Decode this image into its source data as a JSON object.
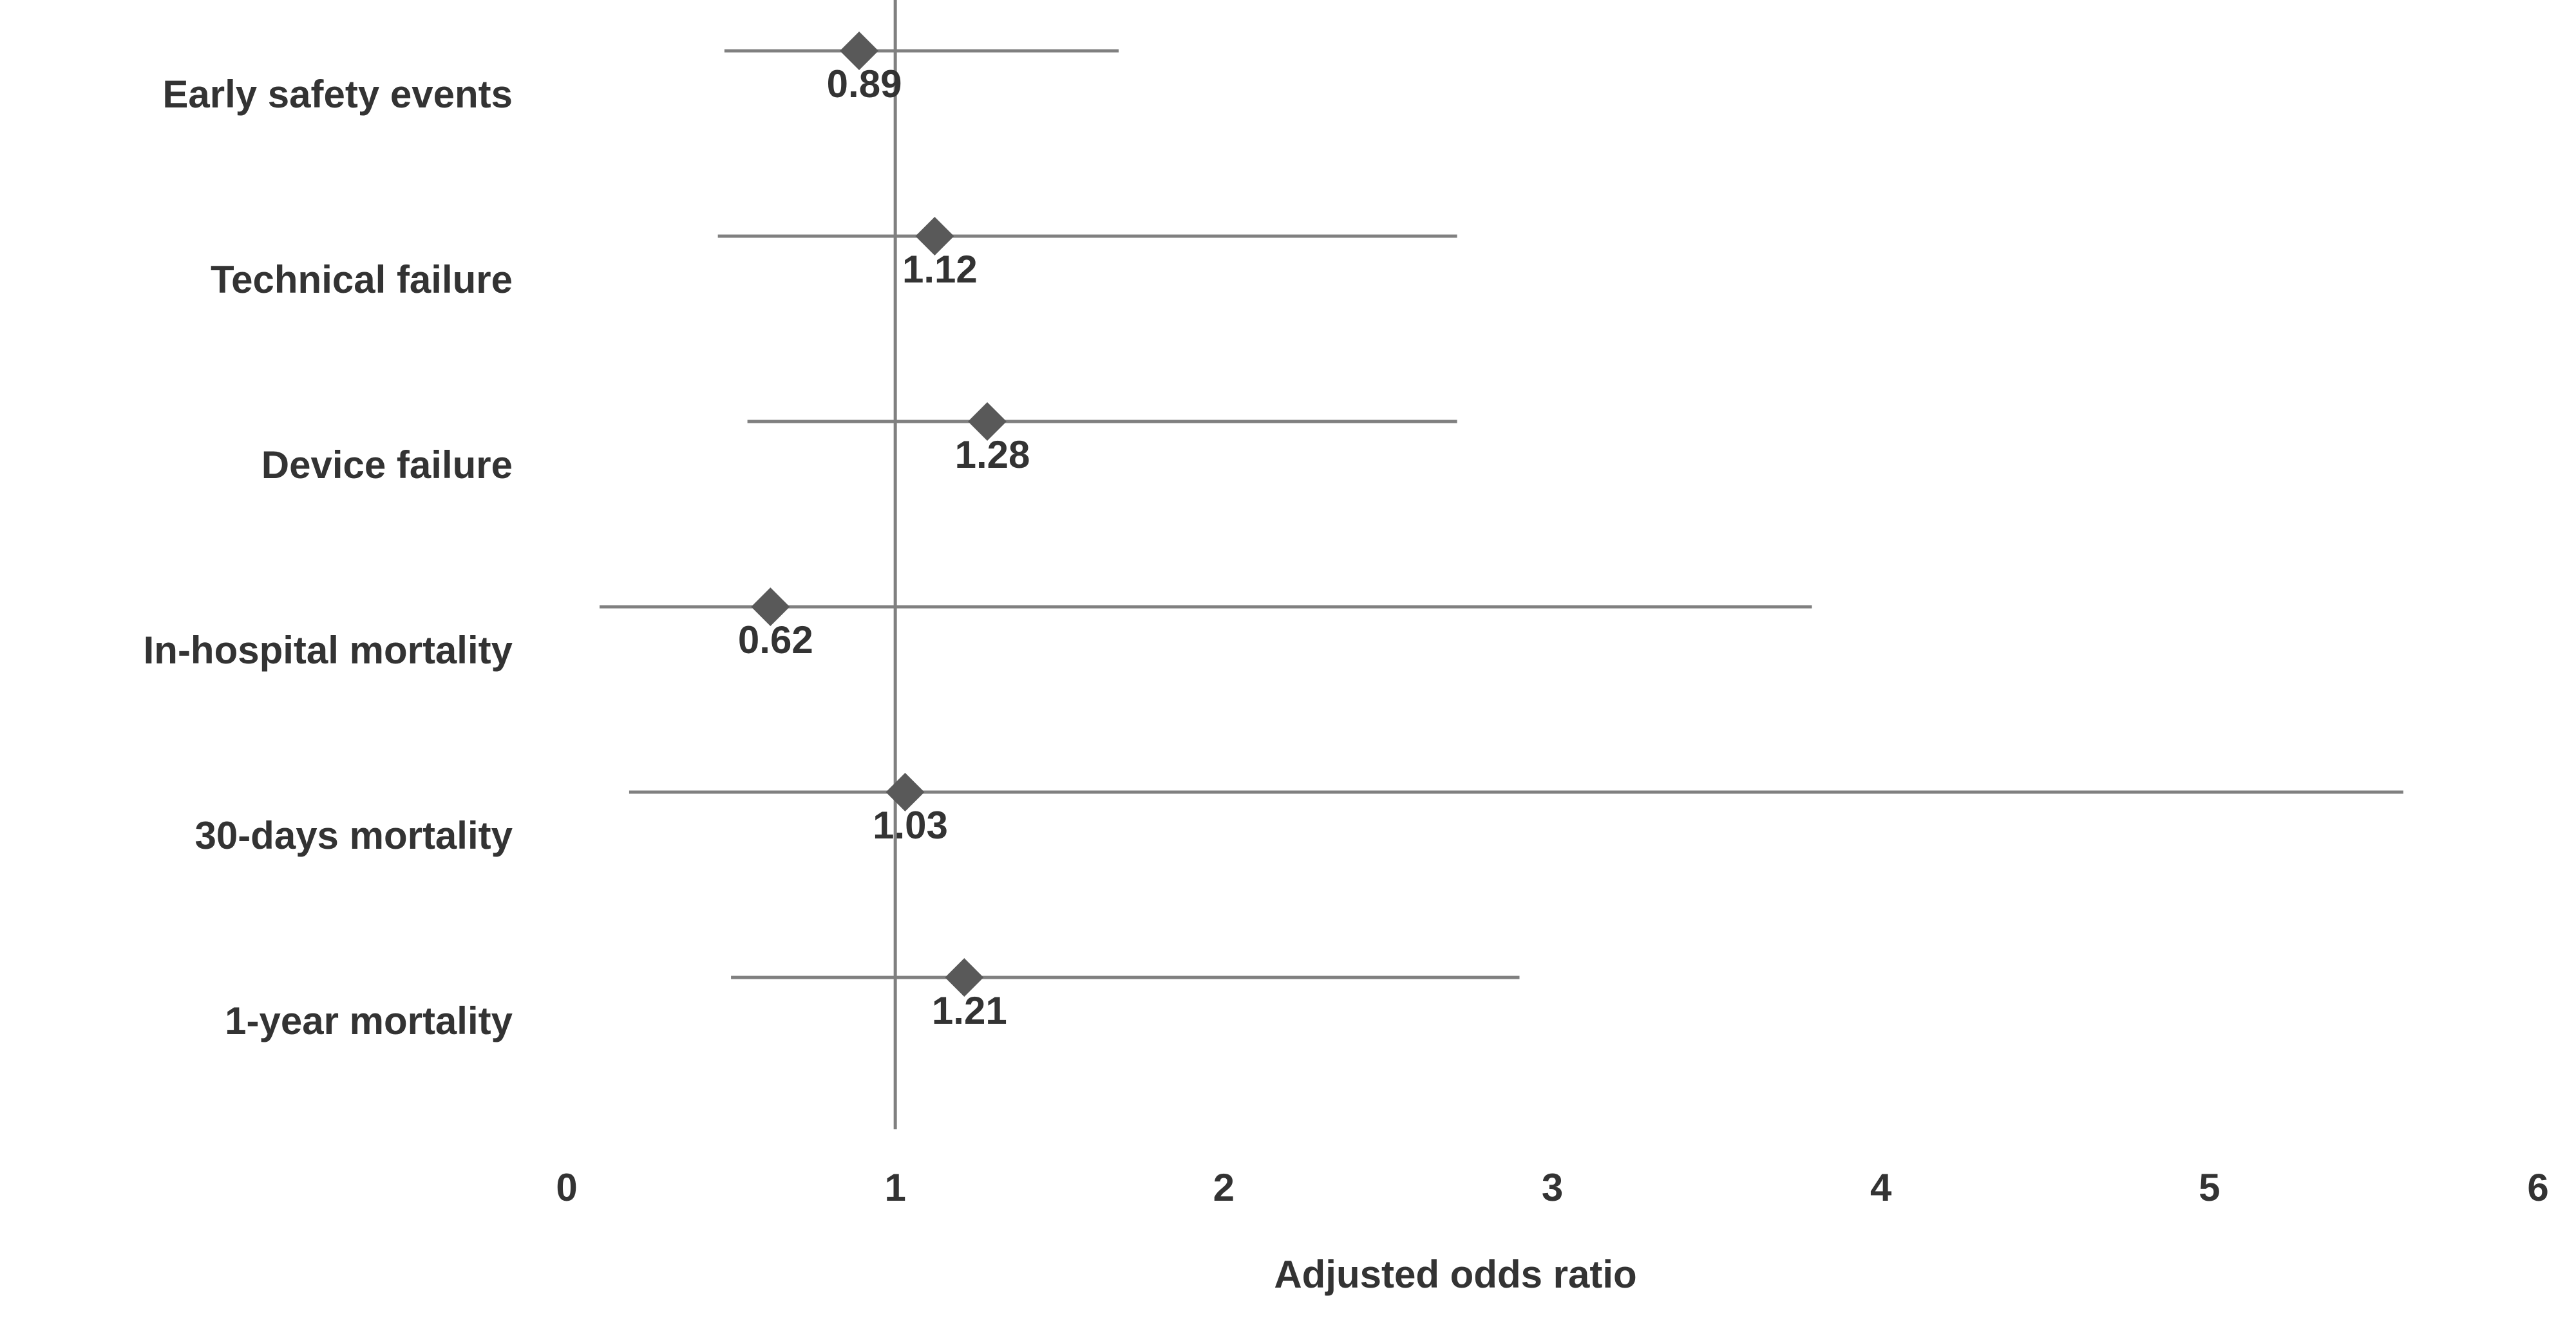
{
  "chart_data": {
    "type": "forest",
    "categories": [
      "Early safety events",
      "Technical failure",
      "Device failure",
      "In-hospital mortality",
      "30-days mortality",
      "1-year mortality"
    ],
    "values": [
      0.89,
      1.12,
      1.28,
      0.62,
      1.03,
      1.21
    ],
    "ci_lower": [
      0.48,
      0.46,
      0.55,
      0.1,
      0.19,
      0.5
    ],
    "ci_upper": [
      1.68,
      2.71,
      2.71,
      3.79,
      5.59,
      2.9
    ],
    "reference_line": 1,
    "xlim": [
      0,
      6
    ],
    "xticks": [
      0,
      1,
      2,
      3,
      4,
      5,
      6
    ],
    "xlabel": "Adjusted odds ratio",
    "color": "#595959",
    "line_color": "#808080"
  }
}
